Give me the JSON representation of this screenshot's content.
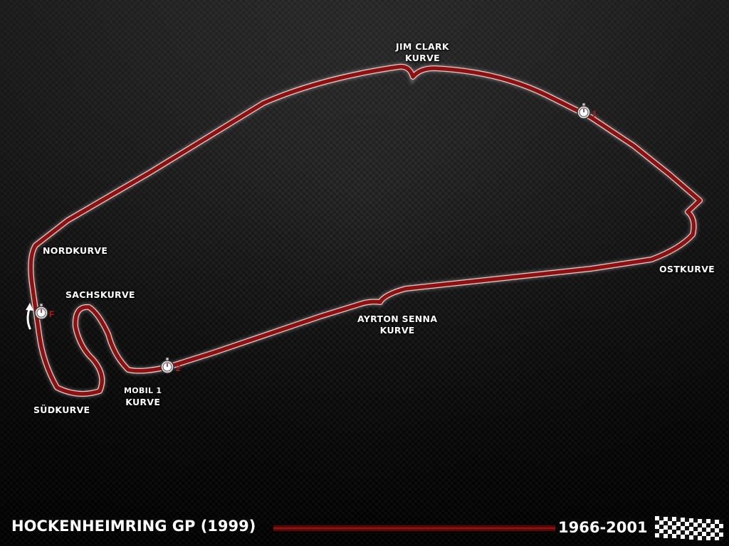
{
  "circuit": {
    "title": "HOCKENHEIMRING GP (1999)",
    "years": "1966-2001"
  },
  "corners": {
    "jim_clark": [
      "JIM CLARK",
      "KURVE"
    ],
    "ostkurve": "OSTKURVE",
    "ayrton_senna": [
      "AYRTON SENNA",
      "KURVE"
    ],
    "nordkurve": "NORDKURVE",
    "sachskurve": "SACHSKURVE",
    "mobil1": [
      "MOBIL 1",
      "KURVE"
    ],
    "sudkurve": "SÜDKURVE"
  },
  "timing_points": {
    "sector1": "1",
    "sector2": "2",
    "finish": "F"
  },
  "colors": {
    "track": "#8e1111",
    "track_edge": "#e8c9c9",
    "accent": "#a31515"
  },
  "icons": [
    "stopwatch-icon",
    "direction-arrow-icon",
    "checkered-flag-icon"
  ]
}
